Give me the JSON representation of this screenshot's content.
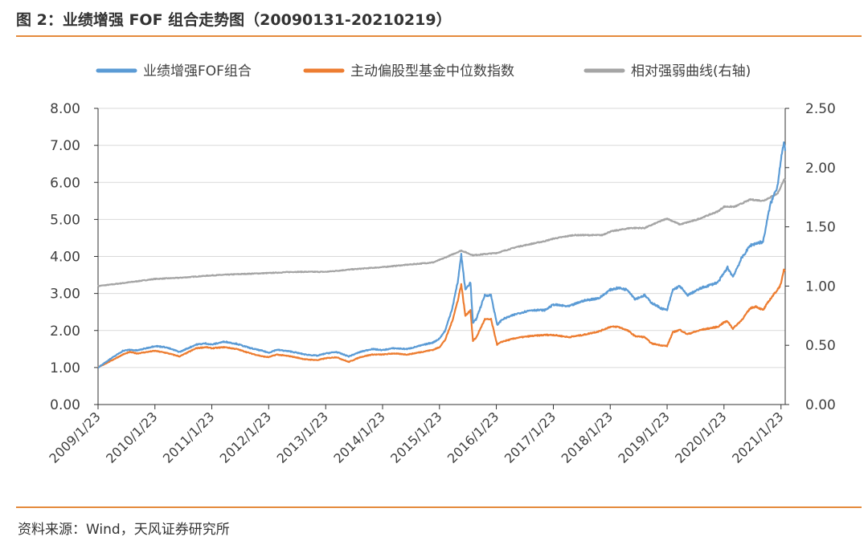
{
  "title": "图 2：业绩增强 FOF 组合走势图（20090131-20210219）",
  "source": "资料来源：Wind，天风证券研究所",
  "colors": {
    "accent": "#e58a3c",
    "series_fof": "#5b9bd5",
    "series_fund": "#ed7d31",
    "series_rel": "#a5a5a5",
    "axis": "#333333",
    "grid": "#d9d9d9"
  },
  "chart_data": {
    "type": "line",
    "legend_position": "top",
    "grid": true,
    "y_left": {
      "range": [
        0,
        8
      ],
      "ticks": [
        "0.00",
        "1.00",
        "2.00",
        "3.00",
        "4.00",
        "5.00",
        "6.00",
        "7.00",
        "8.00"
      ]
    },
    "y_right": {
      "range": [
        0,
        2.5
      ],
      "ticks": [
        "0.00",
        "0.50",
        "1.00",
        "1.50",
        "2.00",
        "2.50"
      ]
    },
    "x_ticks": [
      "2009/1/23",
      "2010/1/23",
      "2011/1/23",
      "2012/1/23",
      "2013/1/23",
      "2014/1/23",
      "2015/1/23",
      "2016/1/23",
      "2017/1/23",
      "2018/1/23",
      "2019/1/23",
      "2020/1/23",
      "2021/1/23"
    ],
    "x_range": [
      "2009/1/23",
      "2021/2/19"
    ],
    "series": [
      {
        "name": "业绩增强FOF组合",
        "axis": "left",
        "color": "#5b9bd5",
        "points": [
          [
            "2009-01-23",
            1.0
          ],
          [
            "2009-04-01",
            1.2
          ],
          [
            "2009-07-01",
            1.45
          ],
          [
            "2009-08-15",
            1.48
          ],
          [
            "2009-10-01",
            1.46
          ],
          [
            "2010-01-23",
            1.58
          ],
          [
            "2010-04-01",
            1.55
          ],
          [
            "2010-07-01",
            1.42
          ],
          [
            "2010-10-15",
            1.62
          ],
          [
            "2010-12-15",
            1.65
          ],
          [
            "2011-01-23",
            1.62
          ],
          [
            "2011-04-15",
            1.7
          ],
          [
            "2011-07-01",
            1.64
          ],
          [
            "2011-10-01",
            1.52
          ],
          [
            "2011-12-15",
            1.45
          ],
          [
            "2012-01-23",
            1.4
          ],
          [
            "2012-03-15",
            1.48
          ],
          [
            "2012-06-15",
            1.43
          ],
          [
            "2012-09-15",
            1.35
          ],
          [
            "2012-12-01",
            1.32
          ],
          [
            "2013-01-23",
            1.38
          ],
          [
            "2013-04-01",
            1.42
          ],
          [
            "2013-06-20",
            1.3
          ],
          [
            "2013-09-01",
            1.42
          ],
          [
            "2013-11-15",
            1.5
          ],
          [
            "2014-01-23",
            1.47
          ],
          [
            "2014-04-01",
            1.52
          ],
          [
            "2014-07-01",
            1.5
          ],
          [
            "2014-10-01",
            1.6
          ],
          [
            "2014-12-15",
            1.68
          ],
          [
            "2015-01-23",
            1.78
          ],
          [
            "2015-03-01",
            2.0
          ],
          [
            "2015-04-15",
            2.6
          ],
          [
            "2015-05-20",
            3.3
          ],
          [
            "2015-06-12",
            4.05
          ],
          [
            "2015-07-08",
            3.1
          ],
          [
            "2015-08-10",
            3.3
          ],
          [
            "2015-08-26",
            2.2
          ],
          [
            "2015-09-15",
            2.3
          ],
          [
            "2015-11-10",
            2.95
          ],
          [
            "2015-12-20",
            2.95
          ],
          [
            "2016-01-28",
            2.15
          ],
          [
            "2016-03-01",
            2.3
          ],
          [
            "2016-06-01",
            2.45
          ],
          [
            "2016-09-01",
            2.55
          ],
          [
            "2016-12-01",
            2.55
          ],
          [
            "2017-01-23",
            2.7
          ],
          [
            "2017-05-01",
            2.65
          ],
          [
            "2017-08-01",
            2.8
          ],
          [
            "2017-11-15",
            2.88
          ],
          [
            "2018-01-23",
            3.1
          ],
          [
            "2018-03-15",
            3.15
          ],
          [
            "2018-05-15",
            3.1
          ],
          [
            "2018-07-01",
            2.85
          ],
          [
            "2018-09-01",
            2.95
          ],
          [
            "2018-10-15",
            2.75
          ],
          [
            "2018-12-15",
            2.6
          ],
          [
            "2019-01-23",
            2.55
          ],
          [
            "2019-03-01",
            3.1
          ],
          [
            "2019-04-15",
            3.2
          ],
          [
            "2019-06-01",
            2.95
          ],
          [
            "2019-09-01",
            3.15
          ],
          [
            "2019-12-15",
            3.3
          ],
          [
            "2020-01-23",
            3.55
          ],
          [
            "2020-02-15",
            3.7
          ],
          [
            "2020-03-20",
            3.45
          ],
          [
            "2020-05-15",
            3.95
          ],
          [
            "2020-07-10",
            4.3
          ],
          [
            "2020-08-15",
            4.35
          ],
          [
            "2020-09-30",
            4.4
          ],
          [
            "2020-11-15",
            5.4
          ],
          [
            "2020-12-31",
            5.9
          ],
          [
            "2021-01-23",
            6.65
          ],
          [
            "2021-02-10",
            7.05
          ],
          [
            "2021-02-19",
            6.85
          ]
        ]
      },
      {
        "name": "主动偏股型基金中位数指数",
        "axis": "left",
        "color": "#ed7d31",
        "points": [
          [
            "2009-01-23",
            1.0
          ],
          [
            "2009-04-01",
            1.15
          ],
          [
            "2009-07-01",
            1.35
          ],
          [
            "2009-08-15",
            1.42
          ],
          [
            "2009-10-01",
            1.38
          ],
          [
            "2010-01-23",
            1.45
          ],
          [
            "2010-04-01",
            1.4
          ],
          [
            "2010-07-01",
            1.3
          ],
          [
            "2010-10-15",
            1.52
          ],
          [
            "2010-12-15",
            1.55
          ],
          [
            "2011-01-23",
            1.52
          ],
          [
            "2011-04-15",
            1.55
          ],
          [
            "2011-07-01",
            1.5
          ],
          [
            "2011-10-01",
            1.38
          ],
          [
            "2011-12-15",
            1.3
          ],
          [
            "2012-01-23",
            1.28
          ],
          [
            "2012-03-15",
            1.35
          ],
          [
            "2012-06-15",
            1.3
          ],
          [
            "2012-09-15",
            1.22
          ],
          [
            "2012-12-01",
            1.2
          ],
          [
            "2013-01-23",
            1.25
          ],
          [
            "2013-04-01",
            1.28
          ],
          [
            "2013-06-20",
            1.15
          ],
          [
            "2013-09-01",
            1.28
          ],
          [
            "2013-11-15",
            1.35
          ],
          [
            "2014-01-23",
            1.35
          ],
          [
            "2014-04-01",
            1.38
          ],
          [
            "2014-07-01",
            1.35
          ],
          [
            "2014-10-01",
            1.42
          ],
          [
            "2014-12-15",
            1.48
          ],
          [
            "2015-01-23",
            1.55
          ],
          [
            "2015-03-01",
            1.75
          ],
          [
            "2015-04-15",
            2.25
          ],
          [
            "2015-05-20",
            2.8
          ],
          [
            "2015-06-12",
            3.25
          ],
          [
            "2015-07-08",
            2.4
          ],
          [
            "2015-08-10",
            2.55
          ],
          [
            "2015-08-26",
            1.72
          ],
          [
            "2015-09-15",
            1.8
          ],
          [
            "2015-11-10",
            2.3
          ],
          [
            "2015-12-20",
            2.3
          ],
          [
            "2016-01-28",
            1.62
          ],
          [
            "2016-03-01",
            1.7
          ],
          [
            "2016-06-01",
            1.8
          ],
          [
            "2016-09-01",
            1.85
          ],
          [
            "2016-12-01",
            1.88
          ],
          [
            "2017-01-23",
            1.88
          ],
          [
            "2017-05-01",
            1.82
          ],
          [
            "2017-08-01",
            1.88
          ],
          [
            "2017-11-15",
            1.98
          ],
          [
            "2018-01-23",
            2.1
          ],
          [
            "2018-03-15",
            2.1
          ],
          [
            "2018-05-15",
            2.0
          ],
          [
            "2018-07-01",
            1.85
          ],
          [
            "2018-09-01",
            1.82
          ],
          [
            "2018-10-15",
            1.65
          ],
          [
            "2018-12-15",
            1.6
          ],
          [
            "2019-01-23",
            1.58
          ],
          [
            "2019-03-01",
            1.95
          ],
          [
            "2019-04-15",
            2.02
          ],
          [
            "2019-06-01",
            1.9
          ],
          [
            "2019-09-01",
            2.02
          ],
          [
            "2019-12-15",
            2.1
          ],
          [
            "2020-01-23",
            2.22
          ],
          [
            "2020-02-15",
            2.25
          ],
          [
            "2020-03-20",
            2.05
          ],
          [
            "2020-05-15",
            2.28
          ],
          [
            "2020-07-10",
            2.6
          ],
          [
            "2020-08-15",
            2.65
          ],
          [
            "2020-09-30",
            2.55
          ],
          [
            "2020-11-15",
            2.85
          ],
          [
            "2020-12-31",
            3.1
          ],
          [
            "2021-01-23",
            3.25
          ],
          [
            "2021-02-10",
            3.65
          ],
          [
            "2021-02-19",
            3.6
          ]
        ]
      },
      {
        "name": "相对强弱曲线(右轴)",
        "axis": "right",
        "color": "#a5a5a5",
        "points": [
          [
            "2009-01-23",
            1.0
          ],
          [
            "2009-06-01",
            1.02
          ],
          [
            "2010-01-23",
            1.06
          ],
          [
            "2010-07-01",
            1.07
          ],
          [
            "2011-01-23",
            1.09
          ],
          [
            "2011-07-01",
            1.1
          ],
          [
            "2012-01-23",
            1.11
          ],
          [
            "2012-07-01",
            1.12
          ],
          [
            "2013-01-23",
            1.12
          ],
          [
            "2013-07-01",
            1.14
          ],
          [
            "2014-01-23",
            1.16
          ],
          [
            "2014-07-01",
            1.18
          ],
          [
            "2014-12-15",
            1.2
          ],
          [
            "2015-03-01",
            1.24
          ],
          [
            "2015-06-12",
            1.3
          ],
          [
            "2015-08-26",
            1.26
          ],
          [
            "2016-01-28",
            1.28
          ],
          [
            "2016-06-01",
            1.33
          ],
          [
            "2016-12-01",
            1.38
          ],
          [
            "2017-01-23",
            1.4
          ],
          [
            "2017-06-01",
            1.43
          ],
          [
            "2017-12-01",
            1.43
          ],
          [
            "2018-01-23",
            1.46
          ],
          [
            "2018-06-01",
            1.49
          ],
          [
            "2018-09-01",
            1.49
          ],
          [
            "2018-12-15",
            1.55
          ],
          [
            "2019-01-23",
            1.57
          ],
          [
            "2019-04-15",
            1.52
          ],
          [
            "2019-08-01",
            1.56
          ],
          [
            "2019-12-15",
            1.63
          ],
          [
            "2020-01-23",
            1.67
          ],
          [
            "2020-04-01",
            1.67
          ],
          [
            "2020-07-10",
            1.73
          ],
          [
            "2020-10-01",
            1.72
          ],
          [
            "2020-12-31",
            1.78
          ],
          [
            "2021-01-23",
            1.84
          ],
          [
            "2021-02-10",
            1.9
          ],
          [
            "2021-02-19",
            1.89
          ]
        ]
      }
    ]
  }
}
